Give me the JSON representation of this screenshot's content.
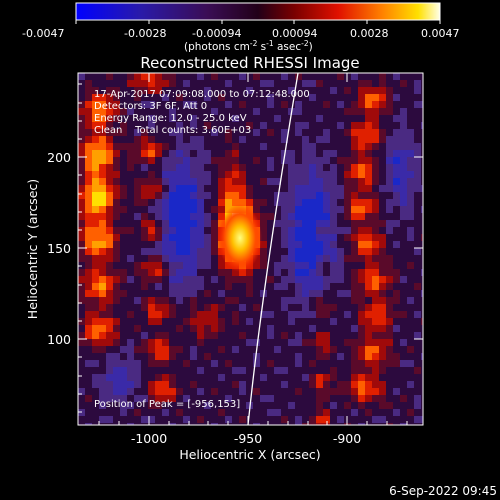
{
  "colorbar": {
    "tick_labels": [
      "-0.0047",
      "-0.0028",
      "-0.00094",
      "0.00094",
      "0.0028",
      "0.0047"
    ],
    "units_prefix": "(photons cm",
    "units_exp1": "-2",
    "units_mid1": " s",
    "units_exp2": "-1",
    "units_mid2": " asec",
    "units_exp3": "-2",
    "units_suffix": ")"
  },
  "plot": {
    "title": "Reconstructed RHESSI Image",
    "info_lines": [
      "17-Apr-2017 07:09:08.000 to 07:12:48.000",
      "Detectors: 3F 6F, Att 0",
      "Energy Range: 12.0 - 25.0 keV",
      "Clean    Total counts: 3.60E+03"
    ],
    "peak_label": "Position of Peak = [-956,153]",
    "x_axis_label": "Heliocentric X (arcsec)",
    "y_axis_label": "Heliocentric Y (arcsec)",
    "x_ticks": [
      "-1000",
      "-950",
      "-900"
    ],
    "y_ticks": [
      "100",
      "150",
      "200"
    ]
  },
  "footer": {
    "timestamp": "6-Sep-2022 09:45"
  }
}
